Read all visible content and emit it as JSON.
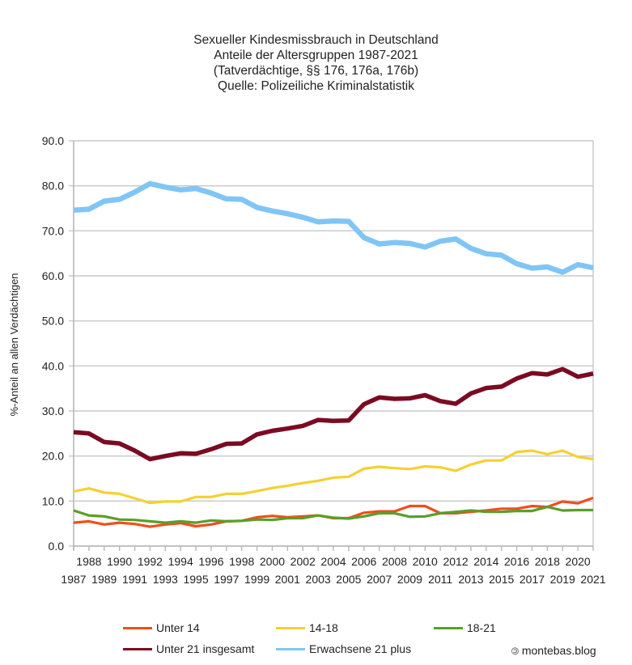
{
  "chart_data": {
    "type": "line",
    "title": [
      "Sexueller Kindesmissbrauch in Deutschland",
      "Anteile der Altersgruppen 1987-2021",
      "(Tatverdächtige, §§ 176, 176a, 176b)",
      "Quelle: Polizeiliche Kriminalstatistik"
    ],
    "xlabel": "",
    "ylabel": "%-Anteil an allen Verdächtigen",
    "ylim": [
      0,
      90
    ],
    "yticks": [
      "0.0",
      "10.0",
      "20.0",
      "30.0",
      "40.0",
      "50.0",
      "60.0",
      "70.0",
      "80.0",
      "90.0"
    ],
    "grid": true,
    "legend_position": "bottom",
    "x": [
      1987,
      1988,
      1989,
      1990,
      1991,
      1992,
      1993,
      1994,
      1995,
      1996,
      1997,
      1998,
      1999,
      2000,
      2001,
      2002,
      2003,
      2004,
      2005,
      2006,
      2007,
      2008,
      2009,
      2010,
      2011,
      2012,
      2013,
      2014,
      2015,
      2016,
      2017,
      2018,
      2019,
      2020,
      2021
    ],
    "series": [
      {
        "name": "Unter 14",
        "color": "#f04e1c",
        "values": [
          5.2,
          5.5,
          4.8,
          5.2,
          4.9,
          4.3,
          4.8,
          5.1,
          4.4,
          4.8,
          5.5,
          5.6,
          6.4,
          6.7,
          6.4,
          6.6,
          6.8,
          6.2,
          6.2,
          7.4,
          7.7,
          7.7,
          8.9,
          8.9,
          7.3,
          7.3,
          7.6,
          7.9,
          8.3,
          8.3,
          8.9,
          8.7,
          9.9,
          9.5,
          10.7
        ]
      },
      {
        "name": "14-18",
        "color": "#f5d033",
        "values": [
          12.1,
          12.8,
          11.9,
          11.6,
          10.6,
          9.6,
          9.9,
          9.9,
          10.9,
          10.9,
          11.6,
          11.6,
          12.2,
          12.9,
          13.4,
          14.0,
          14.5,
          15.2,
          15.4,
          17.2,
          17.6,
          17.3,
          17.1,
          17.7,
          17.5,
          16.7,
          18.1,
          19.0,
          19.0,
          20.9,
          21.2,
          20.4,
          21.2,
          19.8,
          19.3
        ]
      },
      {
        "name": "18-21",
        "color": "#5a9e2a",
        "values": [
          7.9,
          6.8,
          6.6,
          5.9,
          5.8,
          5.5,
          5.2,
          5.5,
          5.2,
          5.7,
          5.5,
          5.6,
          5.9,
          5.8,
          6.2,
          6.2,
          6.8,
          6.3,
          6.1,
          6.6,
          7.3,
          7.3,
          6.5,
          6.6,
          7.3,
          7.6,
          7.9,
          7.6,
          7.6,
          7.8,
          7.8,
          8.7,
          7.9,
          8.0,
          8.0
        ]
      },
      {
        "name": "Unter 21 insgesamt",
        "color": "#7b0a23",
        "values": [
          25.3,
          25.0,
          23.1,
          22.8,
          21.2,
          19.3,
          20.0,
          20.6,
          20.5,
          21.5,
          22.7,
          22.8,
          24.8,
          25.6,
          26.1,
          26.7,
          28.0,
          27.8,
          27.9,
          31.5,
          33.0,
          32.7,
          32.8,
          33.5,
          32.2,
          31.6,
          33.9,
          35.1,
          35.4,
          37.2,
          38.4,
          38.1,
          39.3,
          37.6,
          38.3
        ]
      },
      {
        "name": "Erwachsene 21 plus",
        "color": "#80c5f5",
        "values": [
          74.6,
          74.8,
          76.6,
          77.0,
          78.6,
          80.5,
          79.7,
          79.1,
          79.4,
          78.4,
          77.1,
          77.0,
          75.2,
          74.4,
          73.8,
          73.0,
          72.0,
          72.2,
          72.1,
          68.5,
          67.1,
          67.4,
          67.2,
          66.4,
          67.7,
          68.2,
          66.1,
          64.9,
          64.6,
          62.7,
          61.7,
          62.0,
          60.8,
          62.5,
          61.8
        ]
      }
    ]
  },
  "watermark": {
    "symbol": "©",
    "text": "montebas.blog"
  }
}
